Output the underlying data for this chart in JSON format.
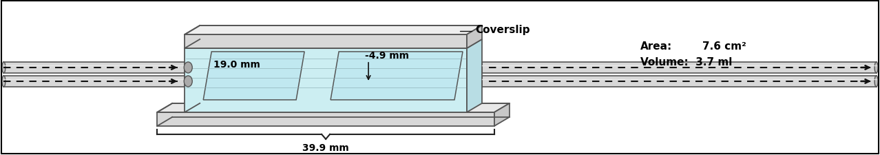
{
  "background_color": "#ffffff",
  "border_color": "#000000",
  "coverslip_label": "Coverslip",
  "dim_49": "-4.9 mm",
  "dim_190": "19.0 mm",
  "dim_399": "39.9 mm",
  "area_label": "Area:",
  "area_value": "7.6 cm²",
  "volume_label": "Volume:  3.7 ml",
  "cell_fill": "#cceef2",
  "plate_fill_front": "#e8e8e8",
  "plate_fill_back": "#d0d0d0",
  "plate_fill_top": "#f0f0f0",
  "plate_edge": "#555555",
  "tube_fill": "#d8d8d8",
  "tube_edge": "#555555",
  "text_color": "#000000",
  "coverslip_fill": "#c0e8f0",
  "font_size": 10,
  "font_size_info": 11
}
